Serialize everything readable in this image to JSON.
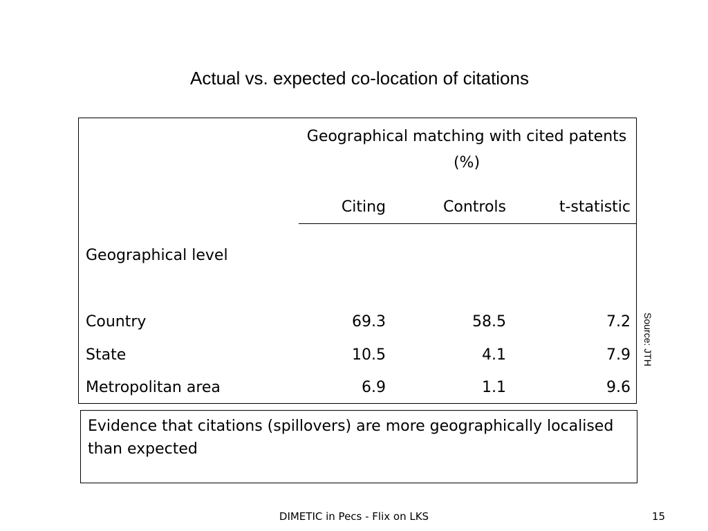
{
  "slide": {
    "title": "Actual vs. expected co-location of citations",
    "source": "Source: JTH",
    "footer": "DIMETIC in Pecs - Flix on LKS",
    "page_number": "15"
  },
  "table": {
    "group_header": "Geographical matching with cited patents (%)",
    "columns": [
      "Citing",
      "Controls",
      "t-statistic"
    ],
    "row_header": "Geographical level",
    "rows": [
      {
        "label": "Country",
        "citing": "69.3",
        "controls": "58.5",
        "t": "7.2"
      },
      {
        "label": "State",
        "citing": "10.5",
        "controls": "4.1",
        "t": "7.9"
      },
      {
        "label": "Metropolitan area",
        "citing": "6.9",
        "controls": "1.1",
        "t": "9.6"
      }
    ]
  },
  "note": "Evidence that citations (spillovers) are more geographically localised than expected"
}
